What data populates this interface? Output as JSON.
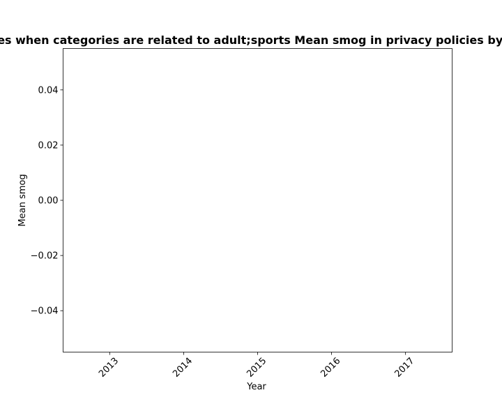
{
  "chart_data": {
    "type": "line",
    "title": "Sites when categories are related to adult;sports Mean smog in privacy policies by Year",
    "xlabel": "Year",
    "ylabel": "Mean smog",
    "x": [
      "2013",
      "2014",
      "2015",
      "2016",
      "2017"
    ],
    "series": [],
    "xlim": [
      2012.37,
      2017.63
    ],
    "ylim": [
      -0.055,
      0.055
    ],
    "yticks": [
      -0.04,
      -0.02,
      0.0,
      0.02,
      0.04
    ],
    "ytick_labels": [
      "−0.04",
      "−0.02",
      "0.00",
      "0.02",
      "0.04"
    ],
    "xtick_rotation_deg": 45,
    "grid": false,
    "legend": "none"
  }
}
